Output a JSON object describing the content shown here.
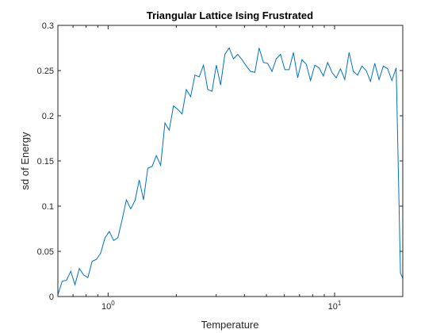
{
  "chart_data": {
    "type": "line",
    "title": "Triangular Lattice Ising Frustrated",
    "xlabel": "Temperature",
    "ylabel": "sd of Energy",
    "xscale": "log",
    "xlim": [
      0.6,
      20
    ],
    "ylim": [
      0,
      0.3
    ],
    "x_ticks": [
      {
        "value": 1,
        "base": "10",
        "exp": "0"
      },
      {
        "value": 10,
        "base": "10",
        "exp": "1"
      }
    ],
    "y_ticks": [
      {
        "value": 0,
        "label": "0"
      },
      {
        "value": 0.05,
        "label": "0.05"
      },
      {
        "value": 0.1,
        "label": "0.1"
      },
      {
        "value": 0.15,
        "label": "0.15"
      },
      {
        "value": 0.2,
        "label": "0.2"
      },
      {
        "value": 0.25,
        "label": "0.25"
      },
      {
        "value": 0.3,
        "label": "0.3"
      }
    ],
    "grid": false,
    "line_color": "#0072BD",
    "series": [
      {
        "x": [
          0.6,
          0.627,
          0.655,
          0.684,
          0.714,
          0.746,
          0.779,
          0.814,
          0.85,
          0.888,
          0.927,
          0.969,
          1.012,
          1.057,
          1.104,
          1.153,
          1.204,
          1.258,
          1.314,
          1.372,
          1.433,
          1.497,
          1.564,
          1.633,
          1.706,
          1.782,
          1.861,
          1.944,
          2.03,
          2.121,
          2.215,
          2.314,
          2.417,
          2.524,
          2.637,
          2.754,
          2.876,
          3.004,
          3.138,
          3.278,
          3.424,
          3.576,
          3.735,
          3.901,
          4.075,
          4.256,
          4.446,
          4.643,
          4.85,
          5.066,
          5.291,
          5.527,
          5.773,
          6.03,
          6.298,
          6.578,
          6.871,
          7.177,
          7.496,
          7.83,
          8.178,
          8.542,
          8.922,
          9.319,
          9.734,
          10.167,
          10.62,
          11.092,
          11.586,
          12.102,
          12.64,
          13.203,
          13.79,
          14.404,
          15.045,
          15.715,
          16.414,
          17.144,
          17.907,
          18.704,
          19.537,
          20.0
        ],
        "y": [
          0.002,
          0.017,
          0.018,
          0.028,
          0.013,
          0.031,
          0.024,
          0.021,
          0.039,
          0.041,
          0.048,
          0.065,
          0.072,
          0.062,
          0.065,
          0.085,
          0.107,
          0.097,
          0.106,
          0.129,
          0.107,
          0.142,
          0.144,
          0.156,
          0.145,
          0.192,
          0.184,
          0.211,
          0.207,
          0.202,
          0.229,
          0.221,
          0.245,
          0.243,
          0.256,
          0.229,
          0.227,
          0.256,
          0.234,
          0.268,
          0.275,
          0.263,
          0.268,
          0.262,
          0.255,
          0.249,
          0.248,
          0.275,
          0.259,
          0.258,
          0.249,
          0.263,
          0.268,
          0.251,
          0.251,
          0.27,
          0.242,
          0.262,
          0.257,
          0.239,
          0.256,
          0.253,
          0.244,
          0.259,
          0.248,
          0.242,
          0.252,
          0.24,
          0.27,
          0.249,
          0.245,
          0.255,
          0.25,
          0.238,
          0.258,
          0.24,
          0.255,
          0.252,
          0.239,
          0.253,
          0.026,
          0.02
        ]
      }
    ]
  }
}
